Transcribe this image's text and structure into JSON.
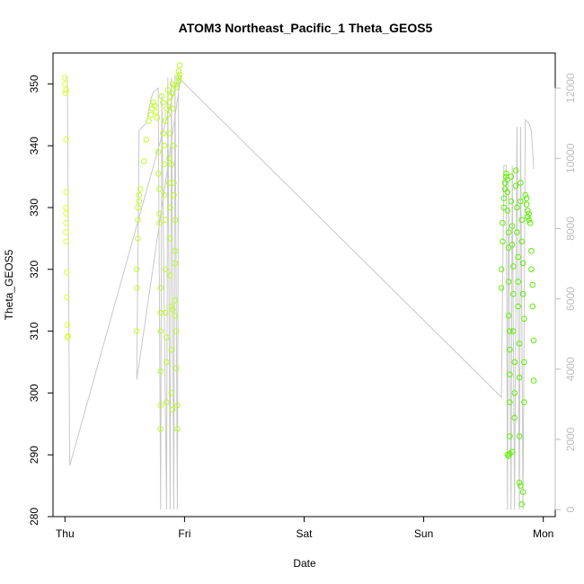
{
  "chart_data": {
    "type": "scatter",
    "title": "ATOM3 Northeast_Pacific_1 Theta_GEOS5",
    "xlabel": "Date",
    "ylabel": "Theta_GEOS5",
    "x_ticks": [
      "Thu",
      "Fri",
      "Sat",
      "Sun",
      "Mon"
    ],
    "x_tick_values": [
      0,
      1,
      2,
      3,
      4
    ],
    "x_unit": "days since Thu 00:00",
    "xlim": [
      -0.1,
      4.1
    ],
    "ylim": [
      280,
      355
    ],
    "y_ticks": [
      280,
      290,
      300,
      310,
      320,
      330,
      340,
      350
    ],
    "y2lim": [
      -200,
      13000
    ],
    "y2_ticks": [
      0,
      2000,
      4000,
      6000,
      8000,
      10000,
      12000
    ],
    "grid": false,
    "colors": {
      "altitude_line": "#c8c8c8",
      "axis": "#000000",
      "right_axis": "#bdbdbd",
      "points_start": "#dcff33",
      "points_end": "#55ee00"
    },
    "series": [
      {
        "kind": "altitude",
        "axis": "right",
        "points": [
          [
            0.0,
            12300
          ],
          [
            0.02,
            12300
          ],
          [
            0.04,
            1250
          ],
          [
            0.95,
            12350
          ],
          [
            0.97,
            12350
          ],
          [
            0.6,
            3700
          ],
          [
            0.62,
            10800
          ],
          [
            0.68,
            11000
          ],
          [
            0.72,
            11700
          ],
          [
            0.74,
            11900
          ],
          [
            0.78,
            12000
          ],
          [
            0.8,
            0
          ],
          [
            0.81,
            11800
          ],
          [
            0.85,
            0
          ],
          [
            0.86,
            12300
          ],
          [
            0.88,
            0
          ],
          [
            0.89,
            12300
          ],
          [
            0.91,
            0
          ],
          [
            0.92,
            12400
          ],
          [
            0.94,
            0
          ],
          [
            0.95,
            12300
          ],
          [
            3.65,
            3200
          ],
          [
            3.67,
            9800
          ],
          [
            3.69,
            9800
          ],
          [
            3.7,
            0
          ],
          [
            3.71,
            9300
          ],
          [
            3.73,
            0
          ],
          [
            3.74,
            9800
          ],
          [
            3.76,
            0
          ],
          [
            3.78,
            10900
          ],
          [
            3.8,
            0
          ],
          [
            3.81,
            10900
          ],
          [
            3.83,
            0
          ],
          [
            3.85,
            11100
          ],
          [
            3.88,
            11000
          ],
          [
            3.9,
            10800
          ],
          [
            3.92,
            9700
          ]
        ]
      },
      {
        "kind": "theta",
        "axis": "left",
        "points": [
          [
            0.0,
            351
          ],
          [
            0.0,
            350
          ],
          [
            0.01,
            349
          ],
          [
            0.005,
            348.5
          ],
          [
            0.01,
            341
          ],
          [
            0.01,
            332.5
          ],
          [
            0.01,
            330
          ],
          [
            0.01,
            329
          ],
          [
            0.01,
            327.5
          ],
          [
            0.01,
            326
          ],
          [
            0.01,
            324.5
          ],
          [
            0.015,
            319.5
          ],
          [
            0.015,
            315.5
          ],
          [
            0.02,
            311
          ],
          [
            0.02,
            309
          ],
          [
            0.025,
            309.2
          ],
          [
            0.6,
            310
          ],
          [
            0.6,
            317
          ],
          [
            0.6,
            320
          ],
          [
            0.61,
            325
          ],
          [
            0.61,
            328
          ],
          [
            0.61,
            330
          ],
          [
            0.62,
            331
          ],
          [
            0.62,
            332
          ],
          [
            0.63,
            333
          ],
          [
            0.66,
            337.5
          ],
          [
            0.68,
            341
          ],
          [
            0.7,
            344
          ],
          [
            0.72,
            345
          ],
          [
            0.73,
            346
          ],
          [
            0.74,
            347
          ],
          [
            0.75,
            346.5
          ],
          [
            0.76,
            345.5
          ],
          [
            0.77,
            344.5
          ],
          [
            0.78,
            339
          ],
          [
            0.78,
            335.5
          ],
          [
            0.79,
            333
          ],
          [
            0.79,
            329
          ],
          [
            0.79,
            327.5
          ],
          [
            0.8,
            317
          ],
          [
            0.8,
            313
          ],
          [
            0.8,
            310
          ],
          [
            0.8,
            303.5
          ],
          [
            0.8,
            298
          ],
          [
            0.8,
            294.2
          ],
          [
            0.81,
            348
          ],
          [
            0.82,
            347
          ],
          [
            0.82,
            342
          ],
          [
            0.83,
            340
          ],
          [
            0.83,
            337
          ],
          [
            0.83,
            332
          ],
          [
            0.84,
            328
          ],
          [
            0.84,
            320
          ],
          [
            0.84,
            313
          ],
          [
            0.85,
            309
          ],
          [
            0.85,
            305
          ],
          [
            0.85,
            298.5
          ],
          [
            0.86,
            349
          ],
          [
            0.86,
            345
          ],
          [
            0.87,
            342
          ],
          [
            0.87,
            338
          ],
          [
            0.87,
            334
          ],
          [
            0.88,
            330
          ],
          [
            0.88,
            325
          ],
          [
            0.88,
            319
          ],
          [
            0.89,
            314
          ],
          [
            0.89,
            307
          ],
          [
            0.89,
            300
          ],
          [
            0.9,
            297.3
          ],
          [
            0.9,
            350
          ],
          [
            0.9,
            346
          ],
          [
            0.91,
            340
          ],
          [
            0.91,
            334
          ],
          [
            0.92,
            328
          ],
          [
            0.92,
            321
          ],
          [
            0.92,
            315
          ],
          [
            0.93,
            310
          ],
          [
            0.93,
            304
          ],
          [
            0.94,
            298
          ],
          [
            0.94,
            294.2
          ],
          [
            0.95,
            351
          ],
          [
            0.95,
            352
          ],
          [
            0.96,
            353
          ],
          [
            0.96,
            351.5
          ],
          [
            0.955,
            350.5
          ],
          [
            0.92,
            349.8
          ],
          [
            0.93,
            349.5
          ],
          [
            0.9,
            348.5
          ],
          [
            0.88,
            348
          ],
          [
            0.87,
            347
          ],
          [
            0.85,
            346
          ],
          [
            0.84,
            344
          ],
          [
            0.89,
            337
          ],
          [
            0.91,
            332
          ],
          [
            0.92,
            323
          ],
          [
            0.9,
            313.5
          ],
          [
            0.92,
            312.5
          ],
          [
            3.65,
            317
          ],
          [
            3.65,
            320
          ],
          [
            3.66,
            324.5
          ],
          [
            3.66,
            327.5
          ],
          [
            3.67,
            330
          ],
          [
            3.67,
            331.5
          ],
          [
            3.68,
            333
          ],
          [
            3.68,
            334
          ],
          [
            3.69,
            335
          ],
          [
            3.69,
            335.5
          ],
          [
            3.7,
            334.5
          ],
          [
            3.7,
            332.5
          ],
          [
            3.7,
            329.5
          ],
          [
            3.71,
            326
          ],
          [
            3.71,
            323.5
          ],
          [
            3.71,
            318
          ],
          [
            3.71,
            312.5
          ],
          [
            3.72,
            310
          ],
          [
            3.72,
            307
          ],
          [
            3.72,
            303
          ],
          [
            3.72,
            298.5
          ],
          [
            3.72,
            293
          ],
          [
            3.7,
            290
          ],
          [
            3.71,
            289.8
          ],
          [
            3.72,
            290.2
          ],
          [
            3.73,
            335
          ],
          [
            3.73,
            331
          ],
          [
            3.74,
            327
          ],
          [
            3.74,
            324
          ],
          [
            3.75,
            320.5
          ],
          [
            3.75,
            316
          ],
          [
            3.75,
            310
          ],
          [
            3.76,
            305
          ],
          [
            3.76,
            300
          ],
          [
            3.76,
            296
          ],
          [
            3.74,
            290.5
          ],
          [
            3.77,
            336
          ],
          [
            3.77,
            333.5
          ],
          [
            3.78,
            330
          ],
          [
            3.78,
            326
          ],
          [
            3.79,
            322
          ],
          [
            3.79,
            318
          ],
          [
            3.79,
            314
          ],
          [
            3.8,
            308
          ],
          [
            3.8,
            302.5
          ],
          [
            3.8,
            293
          ],
          [
            3.8,
            285.5
          ],
          [
            3.81,
            285
          ],
          [
            3.82,
            282
          ],
          [
            3.83,
            284
          ],
          [
            3.81,
            334
          ],
          [
            3.81,
            331
          ],
          [
            3.82,
            328
          ],
          [
            3.82,
            324.5
          ],
          [
            3.83,
            321
          ],
          [
            3.83,
            316
          ],
          [
            3.84,
            312
          ],
          [
            3.84,
            305
          ],
          [
            3.84,
            298.5
          ],
          [
            3.85,
            332
          ],
          [
            3.86,
            331.5
          ],
          [
            3.86,
            330.5
          ],
          [
            3.87,
            329.5
          ],
          [
            3.87,
            328.5
          ],
          [
            3.88,
            328
          ],
          [
            3.88,
            329
          ],
          [
            3.89,
            327.5
          ],
          [
            3.9,
            323
          ],
          [
            3.9,
            320
          ],
          [
            3.91,
            317.5
          ],
          [
            3.91,
            314
          ],
          [
            3.92,
            308.5
          ],
          [
            3.92,
            302
          ]
        ]
      }
    ]
  }
}
